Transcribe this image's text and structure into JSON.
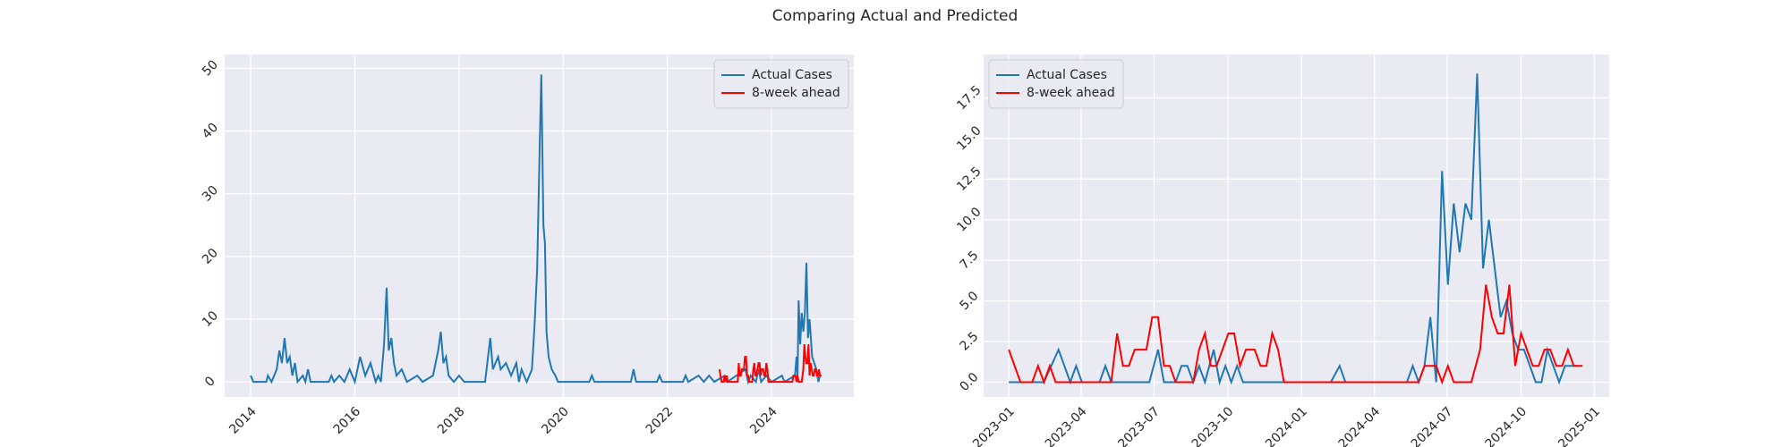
{
  "title": "Comparing Actual and Predicted",
  "chart_data": [
    {
      "type": "line",
      "legend": "upper right",
      "grid": true,
      "xlim": [
        2013.5,
        2025.58
      ],
      "xticks": [
        2014,
        2016,
        2018,
        2020,
        2022,
        2024
      ],
      "ylim": [
        -2.4,
        52.2
      ],
      "yticks": [
        0,
        10,
        20,
        30,
        40,
        50
      ],
      "series": [
        {
          "name": "Actual Cases",
          "color": "#1f77b4",
          "x": [
            2014.0,
            2014.05,
            2014.3,
            2014.33,
            2014.4,
            2014.5,
            2014.55,
            2014.6,
            2014.65,
            2014.7,
            2014.75,
            2014.8,
            2014.85,
            2014.9,
            2015.0,
            2015.05,
            2015.1,
            2015.15,
            2015.5,
            2015.55,
            2015.6,
            2015.7,
            2015.8,
            2015.9,
            2016.0,
            2016.1,
            2016.2,
            2016.3,
            2016.4,
            2016.45,
            2016.5,
            2016.56,
            2016.61,
            2016.65,
            2016.7,
            2016.75,
            2016.8,
            2016.9,
            2017.0,
            2017.2,
            2017.3,
            2017.5,
            2017.55,
            2017.6,
            2017.65,
            2017.7,
            2017.75,
            2017.8,
            2017.9,
            2018.0,
            2018.1,
            2018.5,
            2018.6,
            2018.65,
            2018.75,
            2018.8,
            2018.9,
            2019.0,
            2019.1,
            2019.15,
            2019.2,
            2019.3,
            2019.4,
            2019.45,
            2019.5,
            2019.55,
            2019.58,
            2019.62,
            2019.65,
            2019.68,
            2019.72,
            2019.78,
            2019.85,
            2019.9,
            2020.5,
            2020.55,
            2020.6,
            2021.3,
            2021.35,
            2021.4,
            2021.8,
            2021.85,
            2021.9,
            2022.3,
            2022.35,
            2022.4,
            2022.6,
            2022.7,
            2022.8,
            2022.9,
            2023.1,
            2023.15,
            2023.5,
            2023.55,
            2023.6,
            2023.7,
            2023.75,
            2023.8,
            2023.9,
            2024.0,
            2024.2,
            2024.25,
            2024.45,
            2024.48,
            2024.5,
            2024.52,
            2024.55,
            2024.58,
            2024.61,
            2024.64,
            2024.67,
            2024.7,
            2024.73,
            2024.78,
            2024.82,
            2024.86,
            2024.9,
            2024.93
          ],
          "values": [
            1,
            0,
            0,
            1,
            0,
            2,
            5,
            3,
            7,
            3,
            4,
            1,
            3,
            0,
            1,
            0,
            2,
            0,
            0,
            1,
            0,
            1,
            0,
            2,
            0,
            4,
            1,
            3,
            0,
            1,
            0,
            6,
            15,
            5,
            7,
            3,
            1,
            2,
            0,
            1,
            0,
            1,
            3,
            5,
            8,
            3,
            4,
            1,
            0,
            1,
            0,
            0,
            7,
            2,
            4,
            2,
            3,
            1,
            3,
            0,
            2,
            0,
            2,
            9,
            18,
            38,
            49,
            25,
            22,
            8,
            4,
            2,
            1,
            0,
            0,
            1,
            0,
            0,
            2,
            0,
            0,
            1,
            0,
            0,
            1,
            0,
            1,
            0,
            1,
            0,
            1,
            0,
            2,
            0,
            1,
            0,
            2,
            0,
            1,
            0,
            1,
            0,
            1,
            4,
            1,
            13,
            6,
            11,
            8,
            11,
            19,
            7,
            10,
            4,
            3,
            2,
            0,
            1
          ]
        },
        {
          "name": "8-week ahead",
          "color": "#ff0000",
          "x": [
            2023.0,
            2023.04,
            2023.08,
            2023.1,
            2023.12,
            2023.14,
            2023.16,
            2023.35,
            2023.37,
            2023.39,
            2023.41,
            2023.43,
            2023.47,
            2023.49,
            2023.51,
            2023.53,
            2023.55,
            2023.57,
            2023.63,
            2023.65,
            2023.67,
            2023.69,
            2023.71,
            2023.73,
            2023.75,
            2023.77,
            2023.79,
            2023.81,
            2023.84,
            2023.86,
            2023.88,
            2023.9,
            2023.92,
            2023.94,
            2024.4,
            2024.42,
            2024.46,
            2024.48,
            2024.5,
            2024.52,
            2024.58,
            2024.61,
            2024.63,
            2024.65,
            2024.67,
            2024.69,
            2024.71,
            2024.73,
            2024.75,
            2024.77,
            2024.79,
            2024.81,
            2024.83,
            2024.85,
            2024.87,
            2024.89,
            2024.91,
            2024.93,
            2024.96
          ],
          "values": [
            2,
            0,
            0,
            1,
            0,
            1,
            0,
            0,
            3,
            1,
            1,
            2,
            2,
            4,
            4,
            1,
            1,
            0,
            0,
            2,
            3,
            1,
            1,
            2,
            3,
            3,
            1,
            2,
            2,
            1,
            1,
            3,
            2,
            0,
            0,
            1,
            1,
            0,
            1,
            0,
            0,
            2,
            6,
            4,
            3,
            3,
            6,
            1,
            3,
            2,
            1,
            1,
            2,
            2,
            1,
            1,
            2,
            1,
            1
          ]
        }
      ]
    },
    {
      "type": "line",
      "legend": "upper left",
      "grid": true,
      "xlim": [
        2022.914,
        2025.051
      ],
      "xticks": [
        {
          "value": 2023.0,
          "label": "2023-01"
        },
        {
          "value": 2023.247,
          "label": "2023-04"
        },
        {
          "value": 2023.496,
          "label": "2023-07"
        },
        {
          "value": 2023.748,
          "label": "2023-10"
        },
        {
          "value": 2024.0,
          "label": "2024-01"
        },
        {
          "value": 2024.249,
          "label": "2024-04"
        },
        {
          "value": 2024.497,
          "label": "2024-07"
        },
        {
          "value": 2024.75,
          "label": "2024-10"
        },
        {
          "value": 2025.0,
          "label": "2025-01"
        }
      ],
      "ylim": [
        -0.91,
        20.17
      ],
      "yticks": [
        {
          "value": 0,
          "label": "0.0"
        },
        2.5,
        {
          "value": 5,
          "label": "5.0"
        },
        7.5,
        {
          "value": 10,
          "label": "10.0"
        },
        12.5,
        {
          "value": 15,
          "label": "15.0"
        },
        17.5
      ],
      "series": [
        {
          "name": "Actual Cases",
          "color": "#1f77b4",
          "x": [
            2023.0,
            2023.12,
            2023.17,
            2023.21,
            2023.23,
            2023.25,
            2023.31,
            2023.33,
            2023.35,
            2023.48,
            2023.51,
            2023.53,
            2023.57,
            2023.59,
            2023.61,
            2023.63,
            2023.65,
            2023.67,
            2023.7,
            2023.72,
            2023.74,
            2023.76,
            2023.78,
            2023.8,
            2024.1,
            2024.13,
            2024.15,
            2024.36,
            2024.38,
            2024.4,
            2024.42,
            2024.44,
            2024.46,
            2024.48,
            2024.5,
            2024.52,
            2024.54,
            2024.56,
            2024.58,
            2024.6,
            2024.62,
            2024.64,
            2024.66,
            2024.68,
            2024.7,
            2024.72,
            2024.74,
            2024.76,
            2024.78,
            2024.8,
            2024.82,
            2024.84,
            2024.86,
            2024.88,
            2024.9,
            2024.94
          ],
          "values": [
            0,
            0,
            2,
            0,
            1,
            0,
            0,
            1,
            0,
            0,
            2,
            0,
            0,
            1,
            1,
            0,
            1,
            0,
            2,
            0,
            1,
            0,
            1,
            0,
            0,
            1,
            0,
            0,
            1,
            0,
            1,
            4,
            0,
            13,
            6,
            11,
            8,
            11,
            10,
            19,
            7,
            10,
            7,
            4,
            5,
            3,
            2,
            2,
            1,
            0,
            0,
            2,
            1,
            0,
            1,
            1
          ]
        },
        {
          "name": "8-week ahead",
          "color": "#ff0000",
          "x": [
            2023.0,
            2023.04,
            2023.08,
            2023.1,
            2023.12,
            2023.14,
            2023.16,
            2023.35,
            2023.37,
            2023.39,
            2023.41,
            2023.43,
            2023.47,
            2023.49,
            2023.51,
            2023.53,
            2023.55,
            2023.57,
            2023.63,
            2023.65,
            2023.67,
            2023.69,
            2023.71,
            2023.73,
            2023.75,
            2023.77,
            2023.79,
            2023.81,
            2023.84,
            2023.86,
            2023.88,
            2023.9,
            2023.92,
            2023.94,
            2024.4,
            2024.42,
            2024.46,
            2024.48,
            2024.5,
            2024.52,
            2024.58,
            2024.61,
            2024.63,
            2024.65,
            2024.67,
            2024.69,
            2024.71,
            2024.73,
            2024.75,
            2024.77,
            2024.79,
            2024.81,
            2024.83,
            2024.85,
            2024.87,
            2024.89,
            2024.91,
            2024.93,
            2024.96
          ],
          "values": [
            2,
            0,
            0,
            1,
            0,
            1,
            0,
            0,
            3,
            1,
            1,
            2,
            2,
            4,
            4,
            1,
            1,
            0,
            0,
            2,
            3,
            1,
            1,
            2,
            3,
            3,
            1,
            2,
            2,
            1,
            1,
            3,
            2,
            0,
            0,
            1,
            1,
            0,
            1,
            0,
            0,
            2,
            6,
            4,
            3,
            3,
            6,
            1,
            3,
            2,
            1,
            1,
            2,
            2,
            1,
            1,
            2,
            1,
            1
          ]
        }
      ]
    }
  ]
}
